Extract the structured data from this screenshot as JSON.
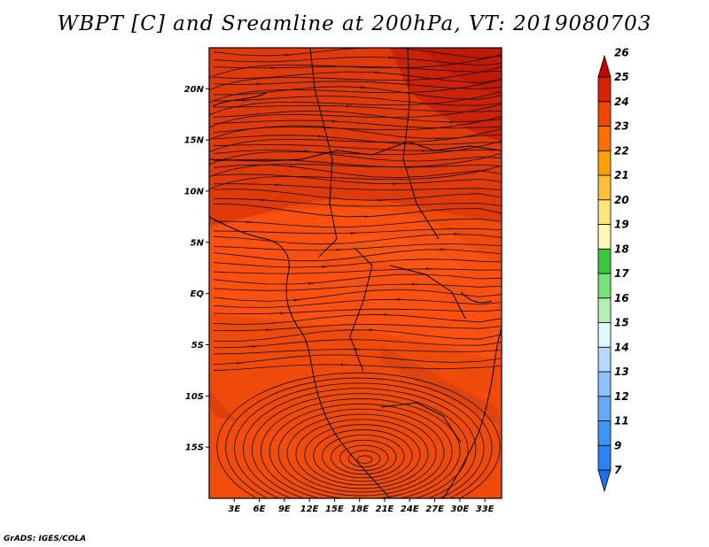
{
  "title": "WBPT [C] and Sreamline at 200hPa, VT: 2019080703",
  "footer": "GrADS: IGES/COLA",
  "map": {
    "lat_range": [
      -20,
      24
    ],
    "lon_range": [
      0,
      35
    ],
    "lat_ticks": [
      {
        "value": 20,
        "label": "20N"
      },
      {
        "value": 15,
        "label": "15N"
      },
      {
        "value": 10,
        "label": "10N"
      },
      {
        "value": 5,
        "label": "5N"
      },
      {
        "value": 0,
        "label": "EQ"
      },
      {
        "value": -5,
        "label": "5S"
      },
      {
        "value": -10,
        "label": "10S"
      },
      {
        "value": -15,
        "label": "15S"
      }
    ],
    "lon_ticks": [
      {
        "value": 3,
        "label": "3E"
      },
      {
        "value": 6,
        "label": "6E"
      },
      {
        "value": 9,
        "label": "9E"
      },
      {
        "value": 12,
        "label": "12E"
      },
      {
        "value": 15,
        "label": "15E"
      },
      {
        "value": 18,
        "label": "18E"
      },
      {
        "value": 21,
        "label": "21E"
      },
      {
        "value": 24,
        "label": "24E"
      },
      {
        "value": 27,
        "label": "27E"
      },
      {
        "value": 30,
        "label": "30E"
      },
      {
        "value": 33,
        "label": "33E"
      }
    ]
  },
  "colorbar": {
    "labels": [
      "7",
      "9",
      "11",
      "12",
      "13",
      "14",
      "15",
      "16",
      "17",
      "18",
      "19",
      "20",
      "21",
      "22",
      "23",
      "24",
      "25",
      "26"
    ],
    "colors": [
      "#1e6ef0",
      "#2b84f5",
      "#3c96f5",
      "#64aaf8",
      "#8cc3fa",
      "#b4dafa",
      "#e1f8ff",
      "#b4f0b4",
      "#78e178",
      "#3cc83c",
      "#fff8b4",
      "#ffe678",
      "#ffbe3c",
      "#ffa000",
      "#ff6e00",
      "#f04600",
      "#d72300",
      "#c80000"
    ]
  }
}
